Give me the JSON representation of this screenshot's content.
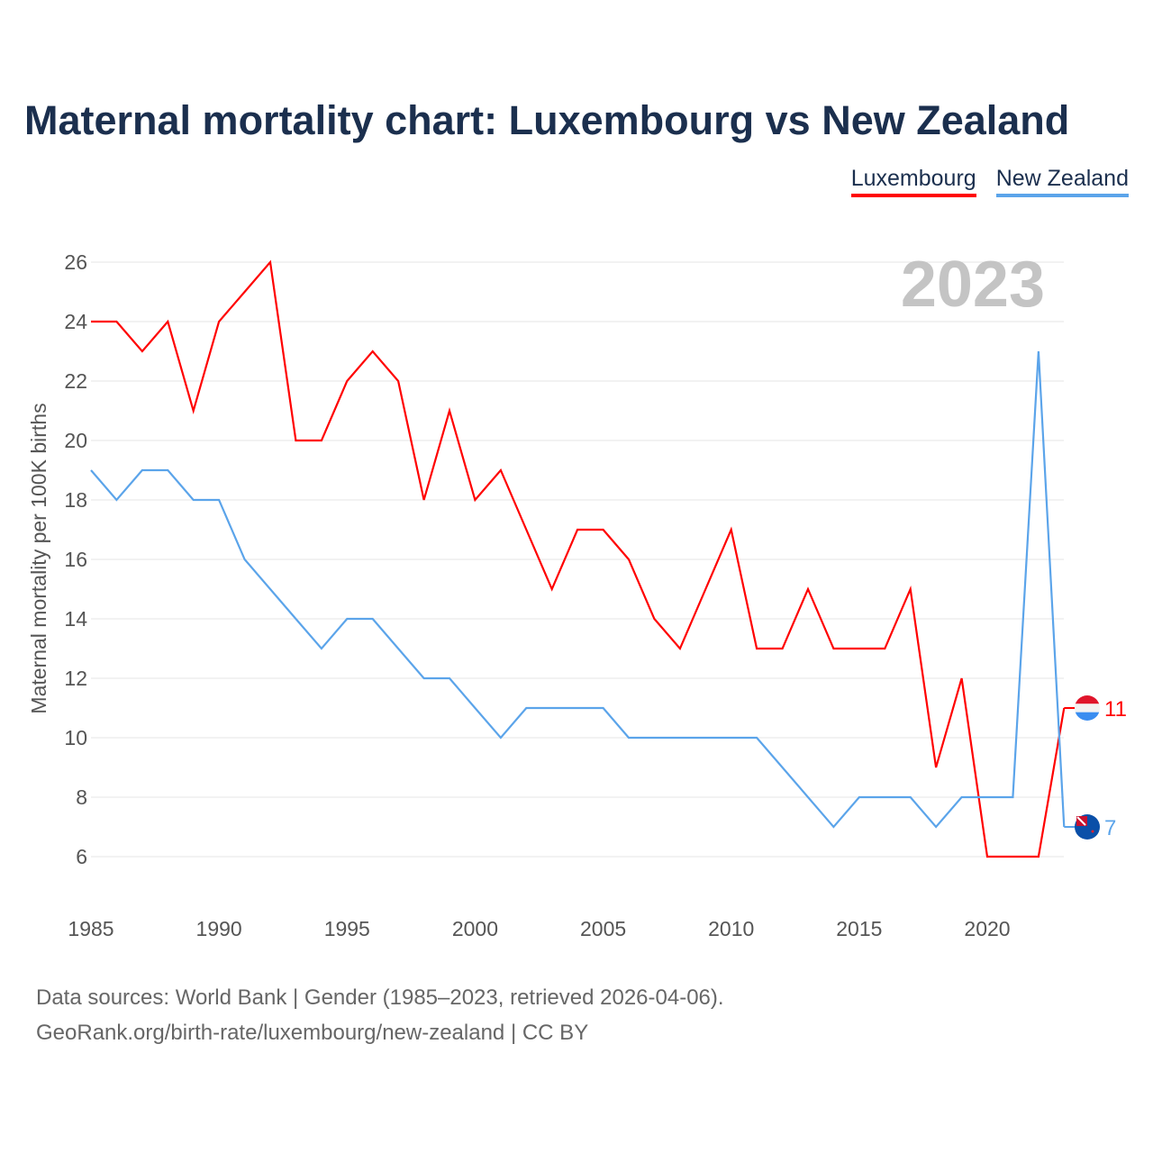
{
  "title": "Maternal mortality chart: Luxembourg vs New Zealand",
  "footer": {
    "line1": "Data sources: World Bank | Gender (1985–2023, retrieved 2026-04-06).",
    "line2": "GeoRank.org/birth-rate/luxembourg/new-zealand | CC BY"
  },
  "chart_data": {
    "type": "line",
    "title": "Maternal mortality chart: Luxembourg vs New Zealand",
    "ylabel": "Maternal mortality per 100K births",
    "xlabel": "",
    "year_label": "2023",
    "xlim": [
      1985,
      2023
    ],
    "ylim": [
      4.5,
      27
    ],
    "xticks": [
      1985,
      1990,
      1995,
      2000,
      2005,
      2010,
      2015,
      2020
    ],
    "yticks": [
      6,
      8,
      10,
      12,
      14,
      16,
      18,
      20,
      22,
      24,
      26
    ],
    "legend_position": "top-right",
    "x": [
      1985,
      1986,
      1987,
      1988,
      1989,
      1990,
      1991,
      1992,
      1993,
      1994,
      1995,
      1996,
      1997,
      1998,
      1999,
      2000,
      2001,
      2002,
      2003,
      2004,
      2005,
      2006,
      2007,
      2008,
      2009,
      2010,
      2011,
      2012,
      2013,
      2014,
      2015,
      2016,
      2017,
      2018,
      2019,
      2020,
      2021,
      2022,
      2023
    ],
    "series": [
      {
        "name": "Luxembourg",
        "color": "#ff0000",
        "end_label": "11",
        "values": [
          24,
          24,
          23,
          24,
          21,
          24,
          25,
          26,
          20,
          20,
          22,
          23,
          22,
          18,
          21,
          18,
          19,
          17,
          15,
          17,
          17,
          16,
          14,
          13,
          15,
          17,
          13,
          13,
          15,
          13,
          13,
          13,
          15,
          9,
          12,
          6,
          6,
          6,
          11
        ]
      },
      {
        "name": "New Zealand",
        "color": "#5ba4ea",
        "end_label": "7",
        "values": [
          19,
          18,
          19,
          19,
          18,
          18,
          16,
          15,
          14,
          13,
          14,
          14,
          13,
          12,
          12,
          11,
          10,
          11,
          11,
          11,
          11,
          10,
          10,
          10,
          10,
          10,
          10,
          9,
          8,
          7,
          8,
          8,
          8,
          7,
          8,
          8,
          8,
          23,
          7
        ]
      }
    ]
  }
}
